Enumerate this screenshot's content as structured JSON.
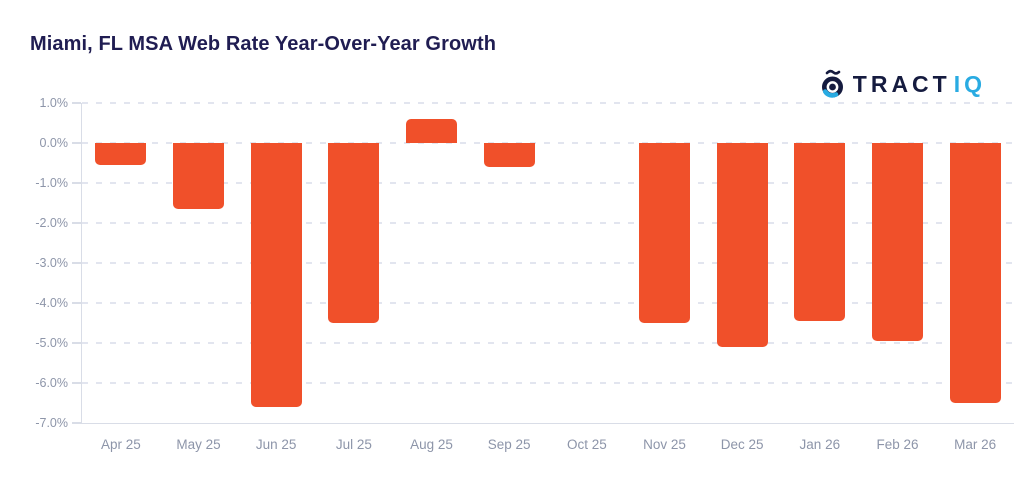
{
  "header": {
    "title": "Miami, FL MSA Web Rate Year-Over-Year Growth",
    "title_color": "#201D52"
  },
  "logo": {
    "brand": "TractIQ",
    "text_primary": "TRACT",
    "text_secondary": "IQ",
    "primary_color": "#151B3F",
    "secondary_color": "#29ABE2"
  },
  "chart_data": {
    "type": "bar",
    "title": "Miami, FL MSA Web Rate Year-Over-Year Growth",
    "categories": [
      "Apr 25",
      "May 25",
      "Jun 25",
      "Jul 25",
      "Aug 25",
      "Sep 25",
      "Oct 25",
      "Nov 25",
      "Dec 25",
      "Jan 26",
      "Feb 26",
      "Mar 26"
    ],
    "values": [
      -0.55,
      -1.65,
      -6.6,
      -4.5,
      0.6,
      -0.6,
      null,
      -4.5,
      -5.1,
      -4.45,
      -4.95,
      -6.5
    ],
    "unit": "%",
    "xlabel": "",
    "ylabel": "",
    "ylim": [
      -7.0,
      1.0
    ],
    "ytick_step": 1.0,
    "ytick_labels": [
      "1.0%",
      "0.0%",
      "-1.0%",
      "-2.0%",
      "-3.0%",
      "-4.0%",
      "-5.0%",
      "-6.0%",
      "-7.0%"
    ],
    "grid": "dashed-horizontal",
    "legend": "none",
    "bar_color": "#F0502A",
    "axis_label_color": "#8D95A9",
    "grid_color": "#E2E5EF",
    "axis_line_color": "#D9DDE7"
  }
}
